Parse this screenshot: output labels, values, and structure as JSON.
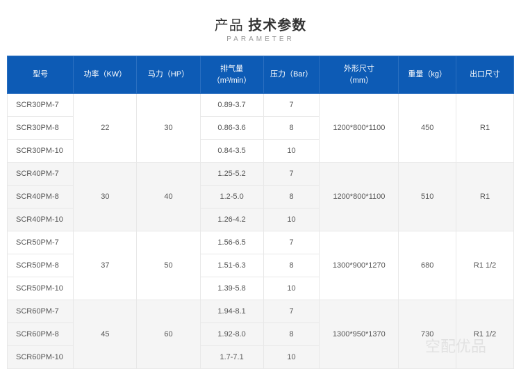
{
  "title": {
    "prefix": "产品 ",
    "bold": "技术参数",
    "sub": "PARAMETER"
  },
  "headers": {
    "model": "型号",
    "power": "功率（KW）",
    "hp": "马力（HP）",
    "airflow": "排气量\n（m³/min）",
    "pressure": "压力（Bar）",
    "size": "外形尺寸\n（mm）",
    "weight": "重量（kg）",
    "outlet": "出口尺寸"
  },
  "groups": [
    {
      "shade": "odd",
      "power": "22",
      "hp": "30",
      "size": "1200*800*1100",
      "weight": "450",
      "outlet": "R1",
      "rows": [
        {
          "model": "SCR30PM-7",
          "airflow": "0.89-3.7",
          "pressure": "7"
        },
        {
          "model": "SCR30PM-8",
          "airflow": "0.86-3.6",
          "pressure": "8"
        },
        {
          "model": "SCR30PM-10",
          "airflow": "0.84-3.5",
          "pressure": "10"
        }
      ]
    },
    {
      "shade": "even",
      "power": "30",
      "hp": "40",
      "size": "1200*800*1100",
      "weight": "510",
      "outlet": "R1",
      "rows": [
        {
          "model": "SCR40PM-7",
          "airflow": "1.25-5.2",
          "pressure": "7"
        },
        {
          "model": "SCR40PM-8",
          "airflow": "1.2-5.0",
          "pressure": "8"
        },
        {
          "model": "SCR40PM-10",
          "airflow": "1.26-4.2",
          "pressure": "10"
        }
      ]
    },
    {
      "shade": "odd",
      "power": "37",
      "hp": "50",
      "size": "1300*900*1270",
      "weight": "680",
      "outlet": "R1 1/2",
      "rows": [
        {
          "model": "SCR50PM-7",
          "airflow": "1.56-6.5",
          "pressure": "7"
        },
        {
          "model": "SCR50PM-8",
          "airflow": "1.51-6.3",
          "pressure": "8"
        },
        {
          "model": "SCR50PM-10",
          "airflow": "1.39-5.8",
          "pressure": "10"
        }
      ]
    },
    {
      "shade": "even",
      "power": "45",
      "hp": "60",
      "size": "1300*950*1370",
      "weight": "730",
      "outlet": "R1 1/2",
      "rows": [
        {
          "model": "SCR60PM-7",
          "airflow": "1.94-8.1",
          "pressure": "7"
        },
        {
          "model": "SCR60PM-8",
          "airflow": "1.92-8.0",
          "pressure": "8"
        },
        {
          "model": "SCR60PM-10",
          "airflow": "1.7-7.1",
          "pressure": "10"
        }
      ]
    }
  ],
  "watermark": "空配优品",
  "colors": {
    "header_bg": "#0d5bb5",
    "header_border": "#2a6fc0",
    "cell_border": "#e8e8e8",
    "row_odd_bg": "#ffffff",
    "row_even_bg": "#f5f5f5",
    "text": "#555555"
  }
}
